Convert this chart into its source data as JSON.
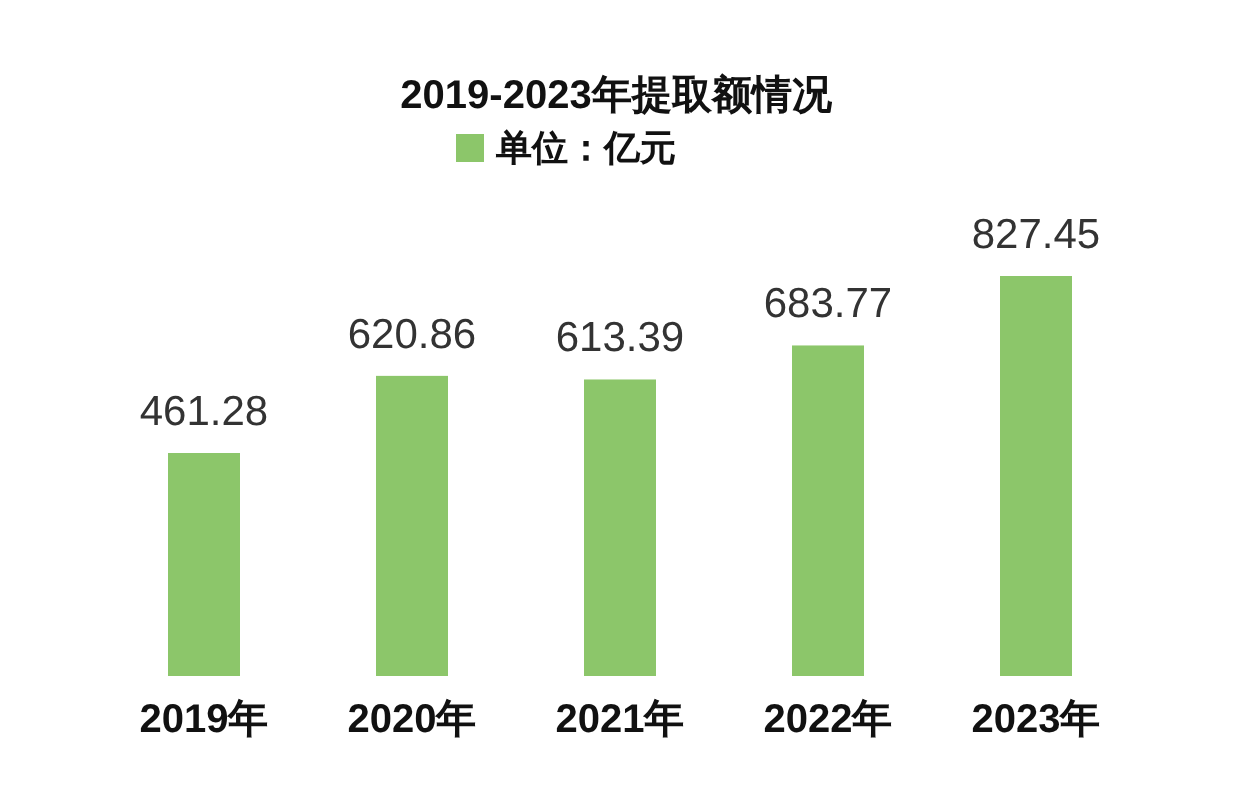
{
  "chart_data": {
    "type": "bar",
    "title": "2019-2023年提取额情况",
    "categories": [
      "2019年",
      "2020年",
      "2021年",
      "2022年",
      "2023年"
    ],
    "series": [
      {
        "name": "单位：亿元",
        "color": "#8cc66a",
        "values": [
          461.28,
          620.86,
          613.39,
          683.77,
          827.45
        ]
      }
    ],
    "data_labels": true,
    "legend": "top"
  }
}
